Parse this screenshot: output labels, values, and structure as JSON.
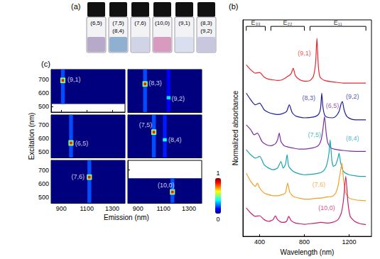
{
  "photo": {
    "title": "(a)",
    "vials": [
      {
        "labels": [
          "(6,5)"
        ],
        "color": "#b7a9c9"
      },
      {
        "labels": [
          "(7,5)",
          "(8,4)"
        ],
        "color": "#8fb0d0"
      },
      {
        "labels": [
          "(7,6)"
        ],
        "color": "#d0d4e6"
      },
      {
        "labels": [
          "(10,0)"
        ],
        "color": "#d99ac0"
      },
      {
        "labels": [
          "(9,1)"
        ],
        "color": "#dadff0"
      },
      {
        "labels": [
          "(8,3)",
          "(9,2)"
        ],
        "color": "#c9c6e0"
      }
    ]
  },
  "chart_data": [
    {
      "type": "line",
      "title": "(b)",
      "xlabel": "Wavelength (nm)",
      "ylabel": "Normalized absorbance",
      "xlim": [
        250,
        1400
      ],
      "xticks": [
        400,
        800,
        1200
      ],
      "ylim": [
        0,
        6.5
      ],
      "yticks": [],
      "tick_labels": "x",
      "grid": false,
      "bands": [
        {
          "label": "E₃₃",
          "range": [
            280,
            450
          ]
        },
        {
          "label": "E₂₂",
          "range": [
            500,
            800
          ]
        },
        {
          "label": "E₁₁",
          "range": [
            850,
            1350
          ]
        }
      ],
      "series": [
        {
          "color": "#e8262f",
          "x": [
            280,
            320,
            360,
            400,
            440,
            480,
            520,
            560,
            600,
            640,
            680,
            700,
            720,
            760,
            800,
            850,
            880,
            900,
            912,
            925,
            940,
            980,
            1050,
            1100,
            1150,
            1200,
            1250,
            1300,
            1350
          ],
          "values": [
            5.15,
            5.0,
            4.9,
            4.92,
            4.78,
            4.72,
            4.7,
            4.68,
            4.7,
            4.78,
            4.88,
            5.05,
            4.82,
            4.7,
            4.66,
            4.68,
            4.8,
            5.2,
            5.95,
            5.1,
            4.78,
            4.68,
            4.64,
            4.62,
            4.6,
            4.6,
            4.6,
            4.6,
            4.6
          ]
        },
        {
          "color": "#1e1e96",
          "x": [
            280,
            320,
            360,
            400,
            440,
            480,
            520,
            560,
            600,
            640,
            665,
            690,
            720,
            760,
            800,
            850,
            900,
            930,
            945,
            955,
            965,
            980,
            1000,
            1050,
            1080,
            1110,
            1130,
            1140,
            1155,
            1180,
            1220,
            1260,
            1300,
            1350
          ],
          "values": [
            4.3,
            4.1,
            3.95,
            4.0,
            3.8,
            3.72,
            3.68,
            3.66,
            3.68,
            3.75,
            3.95,
            3.72,
            3.62,
            3.58,
            3.56,
            3.57,
            3.6,
            3.68,
            3.85,
            4.3,
            3.9,
            3.65,
            3.58,
            3.56,
            3.6,
            3.75,
            4.0,
            4.05,
            3.8,
            3.6,
            3.52,
            3.5,
            3.5,
            3.5
          ]
        },
        {
          "color": "#7a2ea0",
          "x": [
            280,
            320,
            350,
            380,
            420,
            460,
            500,
            540,
            560,
            575,
            590,
            620,
            660,
            700,
            750,
            800,
            850,
            900,
            930,
            950,
            965,
            980,
            995,
            1010,
            1040,
            1100,
            1150,
            1200,
            1250,
            1300,
            1350
          ],
          "values": [
            3.35,
            3.2,
            3.05,
            3.1,
            2.85,
            2.75,
            2.72,
            2.78,
            2.9,
            3.1,
            2.85,
            2.72,
            2.68,
            2.65,
            2.62,
            2.62,
            2.64,
            2.68,
            2.75,
            2.9,
            3.2,
            3.6,
            3.1,
            2.8,
            2.65,
            2.6,
            2.58,
            2.56,
            2.55,
            2.55,
            2.55
          ]
        },
        {
          "color": "#1aa3b5",
          "x": [
            280,
            320,
            360,
            400,
            440,
            480,
            520,
            560,
            590,
            610,
            630,
            645,
            660,
            700,
            750,
            800,
            850,
            900,
            950,
            980,
            1000,
            1020,
            1030,
            1045,
            1060,
            1080,
            1100,
            1110,
            1125,
            1150,
            1200,
            1250,
            1300,
            1350
          ],
          "values": [
            2.6,
            2.45,
            2.35,
            2.4,
            2.15,
            2.05,
            2.0,
            2.05,
            2.25,
            2.05,
            2.15,
            2.45,
            2.1,
            1.95,
            1.88,
            1.85,
            1.86,
            1.88,
            1.92,
            2.0,
            2.15,
            2.5,
            2.9,
            2.3,
            2.1,
            2.15,
            2.35,
            2.5,
            2.2,
            1.95,
            1.85,
            1.82,
            1.8,
            1.8
          ]
        },
        {
          "color": "#f0a024",
          "x": [
            280,
            320,
            360,
            380,
            400,
            440,
            480,
            520,
            560,
            600,
            630,
            650,
            670,
            700,
            750,
            800,
            850,
            900,
            950,
            1000,
            1050,
            1080,
            1100,
            1120,
            1135,
            1150,
            1170,
            1200,
            1250,
            1300,
            1350
          ],
          "values": [
            1.9,
            1.65,
            1.5,
            1.6,
            1.45,
            1.3,
            1.25,
            1.22,
            1.22,
            1.25,
            1.3,
            1.6,
            1.32,
            1.2,
            1.15,
            1.12,
            1.12,
            1.14,
            1.15,
            1.18,
            1.2,
            1.3,
            1.5,
            1.9,
            2.2,
            1.7,
            1.3,
            1.15,
            1.1,
            1.08,
            1.07
          ]
        },
        {
          "color": "#c81e6e",
          "x": [
            280,
            320,
            360,
            400,
            440,
            480,
            520,
            540,
            560,
            600,
            640,
            660,
            680,
            720,
            760,
            800,
            850,
            900,
            950,
            1000,
            1050,
            1100,
            1130,
            1150,
            1170,
            1190,
            1210,
            1250,
            1300,
            1350
          ],
          "values": [
            0.85,
            0.7,
            0.6,
            0.62,
            0.5,
            0.45,
            0.5,
            0.62,
            0.5,
            0.42,
            0.45,
            0.6,
            0.48,
            0.4,
            0.38,
            0.36,
            0.38,
            0.4,
            0.42,
            0.4,
            0.42,
            0.5,
            0.7,
            1.1,
            1.8,
            1.0,
            0.6,
            0.45,
            0.38,
            0.35
          ]
        }
      ],
      "annotations": [
        {
          "text": "(9,1)",
          "x": 800,
          "y": 5.5,
          "color": "#e8262f"
        },
        {
          "text": "(8,3)",
          "x": 840,
          "y": 4.15,
          "color": "#1e1e96"
        },
        {
          "text": "(9,2)",
          "x": 1230,
          "y": 4.2,
          "color": "#1e1e96"
        },
        {
          "text": "(6,5)",
          "x": 1050,
          "y": 3.92,
          "color": "#7a2ea0"
        },
        {
          "text": "(7,5)",
          "x": 890,
          "y": 3.05,
          "color": "#1aa3b5"
        },
        {
          "text": "(8,4)",
          "x": 1230,
          "y": 2.95,
          "color": "#1aa3b5"
        },
        {
          "text": "(7,6)",
          "x": 930,
          "y": 1.55,
          "color": "#f0a024"
        },
        {
          "text": "(10,0)",
          "x": 1000,
          "y": 0.85,
          "color": "#c81e6e"
        }
      ]
    },
    {
      "type": "heatmap",
      "title": "(c)",
      "xlabel": "Emission (nm)",
      "ylabel": "Excitation (nm)",
      "xlim": [
        820,
        1400
      ],
      "xticks": [
        900,
        1100,
        1300
      ],
      "ylim": [
        460,
        770
      ],
      "yticks": [
        500,
        600,
        700
      ],
      "grid": false,
      "colorbar": {
        "range": [
          0,
          1
        ],
        "ticks": [
          0,
          1
        ]
      },
      "panels": [
        {
          "tick_labels": "y",
          "cells": [
            [
              820,
              1400,
              520,
              770,
              0
            ],
            [
              897,
              927,
              520,
              770,
              0.2
            ],
            [
              892,
              932,
              671,
              711,
              0.5
            ],
            [
              902,
              922,
              681,
              701,
              0.85
            ]
          ],
          "annotations": [
            {
              "text": "(9,1)",
              "x": 1000,
              "y": 700
            }
          ]
        },
        {
          "tick_labels": false,
          "cells": [
            [
              820,
              1400,
              460,
              770,
              0
            ],
            [
              940,
              970,
              460,
              770,
              0.2
            ],
            [
              1125,
              1155,
              460,
              770,
              0.12
            ],
            [
              935,
              975,
              645,
              685,
              0.5
            ],
            [
              945,
              965,
              655,
              675,
              0.85
            ],
            [
              1125,
              1155,
              553,
              577,
              0.35
            ]
          ],
          "annotations": [
            {
              "text": "(8,3)",
              "x": 1035,
              "y": 672
            },
            {
              "text": "(9,2)",
              "x": 1215,
              "y": 560
            }
          ]
        },
        {
          "tick_labels": "y",
          "cells": [
            [
              820,
              1400,
              460,
              770,
              0
            ],
            [
              961,
              991,
              460,
              770,
              0.2
            ],
            [
              956,
              996,
              546,
              586,
              0.5
            ],
            [
              966,
              986,
              556,
              576,
              0.85
            ]
          ],
          "annotations": [
            {
              "text": "(6,5)",
              "x": 1060,
              "y": 565
            }
          ]
        },
        {
          "tick_labels": false,
          "cells": [
            [
              820,
              1400,
              460,
              770,
              0
            ],
            [
              1009,
              1039,
              460,
              770,
              0.2
            ],
            [
              1095,
              1125,
              460,
              770,
              0.15
            ],
            [
              1004,
              1044,
              625,
              665,
              0.5
            ],
            [
              1014,
              1034,
              635,
              655,
              0.85
            ],
            [
              1095,
              1125,
              577,
              601,
              0.4
            ]
          ],
          "annotations": [
            {
              "text": "(7,5)",
              "x": 960,
              "y": 700
            },
            {
              "text": "(8,4)",
              "x": 1190,
              "y": 590
            }
          ]
        },
        {
          "tick_labels": true,
          "cells": [
            [
              820,
              1400,
              460,
              770,
              0
            ],
            [
              1105,
              1135,
              460,
              770,
              0.2
            ],
            [
              1100,
              1140,
              628,
              668,
              0.5
            ],
            [
              1110,
              1130,
              638,
              658,
              0.85
            ]
          ],
          "annotations": [
            {
              "text": "(7,6)",
              "x": 1030,
              "y": 652
            }
          ]
        },
        {
          "tick_labels": "x",
          "cells": [
            [
              820,
              1400,
              460,
              640,
              0
            ],
            [
              1155,
              1185,
              460,
              640,
              0.2
            ],
            [
              1150,
              1190,
              520,
              560,
              0.5
            ],
            [
              1160,
              1180,
              530,
              550,
              0.85
            ]
          ],
          "annotations": [
            {
              "text": "(10,0)",
              "x": 1120,
              "y": 590
            }
          ]
        }
      ]
    }
  ]
}
